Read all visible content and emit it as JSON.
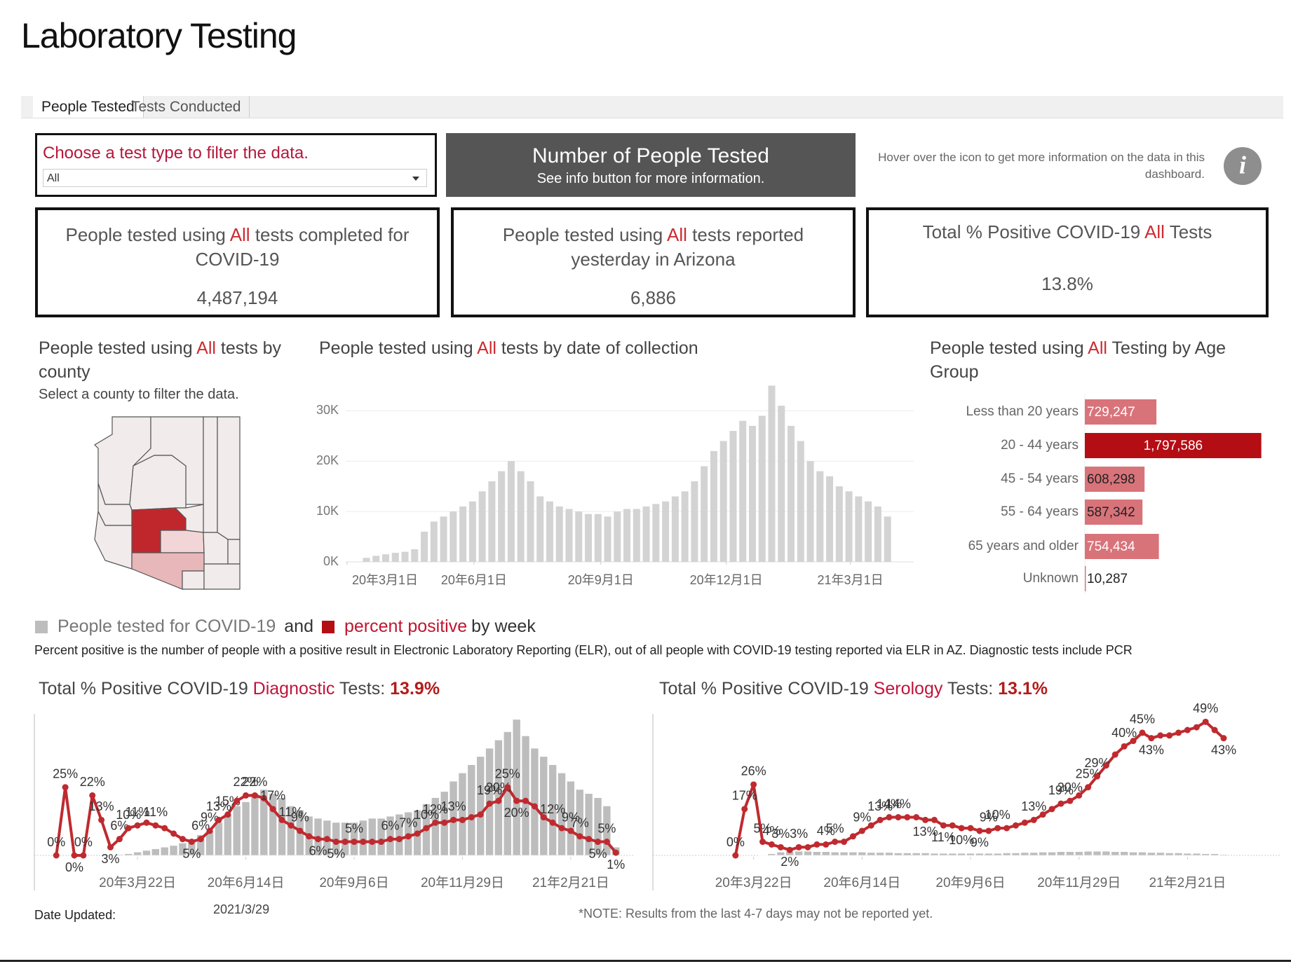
{
  "header": {
    "title": "Laboratory Testing"
  },
  "tabs": [
    "People Tested",
    "Tests Conducted"
  ],
  "filter": {
    "label": "Choose a test type to filter the data.",
    "selected": "All"
  },
  "banner": {
    "title": "Number of People Tested",
    "subtitle": "See info button for more information."
  },
  "info": {
    "text": "Hover over the icon to get more information on the data in this dashboard.",
    "icon": "i"
  },
  "kpis": [
    {
      "before": "People tested using ",
      "highlight": "All",
      "after": " tests completed for COVID-19",
      "value": "4,487,194"
    },
    {
      "before": "People tested using ",
      "highlight": "All",
      "after": " tests reported yesterday in Arizona",
      "value": "6,886"
    },
    {
      "before": "Total % Positive COVID-19 ",
      "highlight": "All",
      "after": " Tests",
      "value": "13.8%"
    }
  ],
  "map": {
    "before": "People tested using ",
    "highlight": "All",
    "after": " tests by county",
    "subtitle": "Select a county to filter the data."
  },
  "weekly_legend": {
    "and": "and",
    "by_week": "by week",
    "note": "Percent positive is the number of people with a positive result in Electronic Laboratory Reporting (ELR), out of all people with COVID-19 testing reported via ELR in AZ. Diagnostic tests include PCR"
  },
  "footer": {
    "label": "Date Updated:",
    "date": "2021/3/29",
    "note": "*NOTE: Results from the last 4-7 days may not be reported yet."
  },
  "chart_data": [
    {
      "type": "bar",
      "title_parts": [
        "People tested using ",
        "All",
        " tests by date of collection"
      ],
      "x": [
        "2020-03-15",
        "2020-03-22",
        "2020-03-29",
        "2020-04-05",
        "2020-04-12",
        "2020-04-19",
        "2020-04-26",
        "2020-05-03",
        "2020-05-10",
        "2020-05-17",
        "2020-05-24",
        "2020-05-31",
        "2020-06-07",
        "2020-06-14",
        "2020-06-21",
        "2020-06-28",
        "2020-07-05",
        "2020-07-12",
        "2020-07-19",
        "2020-07-26",
        "2020-08-02",
        "2020-08-09",
        "2020-08-16",
        "2020-08-23",
        "2020-08-30",
        "2020-09-06",
        "2020-09-13",
        "2020-09-20",
        "2020-09-27",
        "2020-10-04",
        "2020-10-11",
        "2020-10-18",
        "2020-10-25",
        "2020-11-01",
        "2020-11-08",
        "2020-11-15",
        "2020-11-22",
        "2020-11-29",
        "2020-12-06",
        "2020-12-13",
        "2020-12-20",
        "2020-12-27",
        "2021-01-03",
        "2021-01-10",
        "2021-01-17",
        "2021-01-24",
        "2021-01-31",
        "2021-02-07",
        "2021-02-14",
        "2021-02-21",
        "2021-02-28",
        "2021-03-07",
        "2021-03-14",
        "2021-03-21",
        "2021-03-28"
      ],
      "values": [
        800,
        1200,
        1500,
        1800,
        2000,
        2500,
        6000,
        8000,
        9000,
        10000,
        11000,
        12000,
        14000,
        16000,
        18000,
        20000,
        18000,
        16000,
        13000,
        12000,
        11000,
        10500,
        10000,
        9500,
        9500,
        9000,
        10000,
        10500,
        10500,
        11000,
        11500,
        12000,
        13000,
        14000,
        16000,
        19000,
        22000,
        24000,
        26000,
        28000,
        27000,
        29000,
        35000,
        31000,
        27000,
        24000,
        20000,
        18000,
        17000,
        15000,
        14000,
        13000,
        12000,
        11000,
        9000
      ],
      "color": "#d3d3d3",
      "xlim": [
        "2020-02-29",
        "2021-04-16"
      ],
      "xticks": [
        {
          "value": "2020-03-01",
          "label": "20年3月1日"
        },
        {
          "value": "2020-06-01",
          "label": "20年6月1日"
        },
        {
          "value": "2020-09-01",
          "label": "20年9月1日"
        },
        {
          "value": "2020-12-01",
          "label": "20年12月1日"
        },
        {
          "value": "2021-03-01",
          "label": "21年3月1日"
        }
      ],
      "ylim": [
        0,
        37000
      ],
      "yticks": [
        {
          "value": 0,
          "label": "0K"
        },
        {
          "value": 10000,
          "label": "10K"
        },
        {
          "value": 20000,
          "label": "20K"
        },
        {
          "value": 30000,
          "label": "30K"
        }
      ],
      "grid": true
    },
    {
      "type": "hbar",
      "title_parts": [
        "People tested using ",
        "All",
        " Testing by Age Group"
      ],
      "categories": [
        "Less than 20 years",
        "20 - 44 years",
        "45 - 54 years",
        "55 - 64 years",
        "65 years and older",
        "Unknown"
      ],
      "values": [
        729247,
        1797586,
        608298,
        587342,
        754434,
        10287
      ],
      "value_labels": [
        "729,247",
        "1,797,586",
        "608,298",
        "587,342",
        "754,434",
        "10,287"
      ],
      "colors": [
        "#d9737a",
        "#b50d14",
        "#d9737a",
        "#d9737a",
        "#d9737a",
        "#d9737a"
      ],
      "xlim": [
        0,
        1800000
      ]
    },
    {
      "type": "combo",
      "title_parts": [
        "Total % Positive COVID-19 ",
        "Diagnostic",
        " Tests: ",
        "13.9%"
      ],
      "x": [
        "2020-01-19",
        "2020-01-26",
        "2020-02-02",
        "2020-02-09",
        "2020-02-16",
        "2020-02-23",
        "2020-03-01",
        "2020-03-08",
        "2020-03-15",
        "2020-03-22",
        "2020-03-29",
        "2020-04-05",
        "2020-04-12",
        "2020-04-19",
        "2020-04-26",
        "2020-05-03",
        "2020-05-10",
        "2020-05-17",
        "2020-05-24",
        "2020-05-31",
        "2020-06-07",
        "2020-06-14",
        "2020-06-21",
        "2020-06-28",
        "2020-07-05",
        "2020-07-12",
        "2020-07-19",
        "2020-07-26",
        "2020-08-02",
        "2020-08-09",
        "2020-08-16",
        "2020-08-23",
        "2020-08-30",
        "2020-09-06",
        "2020-09-13",
        "2020-09-20",
        "2020-09-27",
        "2020-10-04",
        "2020-10-11",
        "2020-10-18",
        "2020-10-25",
        "2020-11-01",
        "2020-11-08",
        "2020-11-15",
        "2020-11-22",
        "2020-11-29",
        "2020-12-06",
        "2020-12-13",
        "2020-12-20",
        "2020-12-27",
        "2021-01-03",
        "2021-01-10",
        "2021-01-17",
        "2021-01-24",
        "2021-01-31",
        "2021-02-07",
        "2021-02-14",
        "2021-02-21",
        "2021-02-28",
        "2021-03-07",
        "2021-03-14",
        "2021-03-21",
        "2021-03-28"
      ],
      "series": [
        {
          "name": "People tested for COVID-19",
          "color": "#bdbdbd",
          "axis": "y2",
          "values": [
            0,
            0,
            0,
            0,
            0,
            0,
            0,
            2000,
            4000,
            8000,
            12000,
            16000,
            20000,
            24000,
            30000,
            40000,
            50000,
            60000,
            80000,
            100000,
            120000,
            130000,
            150000,
            160000,
            150000,
            140000,
            120000,
            110000,
            95000,
            90000,
            85000,
            80000,
            80000,
            80000,
            85000,
            90000,
            90000,
            95000,
            100000,
            105000,
            110000,
            125000,
            140000,
            155000,
            180000,
            200000,
            220000,
            240000,
            260000,
            280000,
            300000,
            330000,
            290000,
            260000,
            240000,
            220000,
            200000,
            180000,
            160000,
            150000,
            140000,
            120000,
            20000
          ]
        },
        {
          "name": "percent positive",
          "color": "#bf2a2f",
          "values": [
            0,
            25,
            0,
            0,
            22,
            13,
            3,
            6,
            10,
            11,
            12,
            11,
            10,
            8,
            6,
            5,
            6,
            9,
            13,
            15,
            20,
            22,
            22,
            21,
            17,
            13,
            11,
            9,
            7,
            6,
            6,
            5,
            5,
            5,
            5,
            5,
            5,
            6,
            6,
            7,
            8,
            10,
            12,
            12,
            13,
            13,
            14,
            15,
            19,
            20,
            25,
            20,
            20,
            18,
            14,
            12,
            10,
            9,
            7,
            6,
            5,
            5,
            1
          ],
          "value_labels": [
            "0%",
            "25%",
            "0%",
            "0%",
            "22%",
            "13%",
            "3%",
            "6%",
            "10%",
            "11%",
            null,
            "11%",
            null,
            null,
            null,
            "5%",
            "6%",
            "9%",
            "13%",
            "15%",
            null,
            "22%",
            "22%",
            null,
            "17%",
            null,
            "11%",
            "9%",
            null,
            "6%",
            null,
            "5%",
            null,
            "5%",
            null,
            null,
            null,
            "6%",
            null,
            "7%",
            null,
            "10%",
            "12%",
            null,
            "13%",
            null,
            null,
            null,
            "19%",
            "20%",
            "25%",
            "20%",
            null,
            null,
            null,
            "12%",
            null,
            "9%",
            "7%",
            null,
            "5%",
            "5%",
            "1%"
          ]
        }
      ],
      "xlim": [
        "2020-01-02",
        "2021-04-11"
      ],
      "xticks": [
        {
          "value": "2020-03-22",
          "label": "20年3月22日"
        },
        {
          "value": "2020-06-14",
          "label": "20年6月14日"
        },
        {
          "value": "2020-09-06",
          "label": "20年9月6日"
        },
        {
          "value": "2020-11-29",
          "label": "20年11月29日"
        },
        {
          "value": "2021-02-21",
          "label": "21年2月21日"
        }
      ],
      "ylim": [
        0,
        51.4
      ],
      "y2lim": [
        0,
        340000
      ]
    },
    {
      "type": "combo",
      "title_parts": [
        "Total % Positive COVID-19 ",
        "Serology",
        " Tests: ",
        "13.1%"
      ],
      "x": [
        "2020-03-08",
        "2020-03-15",
        "2020-03-22",
        "2020-03-29",
        "2020-04-05",
        "2020-04-12",
        "2020-04-19",
        "2020-04-26",
        "2020-05-03",
        "2020-05-10",
        "2020-05-17",
        "2020-05-24",
        "2020-05-31",
        "2020-06-07",
        "2020-06-14",
        "2020-06-21",
        "2020-06-28",
        "2020-07-05",
        "2020-07-12",
        "2020-07-19",
        "2020-07-26",
        "2020-08-02",
        "2020-08-09",
        "2020-08-16",
        "2020-08-23",
        "2020-08-30",
        "2020-09-06",
        "2020-09-13",
        "2020-09-20",
        "2020-09-27",
        "2020-10-04",
        "2020-10-11",
        "2020-10-18",
        "2020-10-25",
        "2020-11-01",
        "2020-11-08",
        "2020-11-15",
        "2020-11-22",
        "2020-11-29",
        "2020-12-06",
        "2020-12-13",
        "2020-12-20",
        "2020-12-27",
        "2021-01-03",
        "2021-01-10",
        "2021-01-17",
        "2021-01-24",
        "2021-01-31",
        "2021-02-07",
        "2021-02-14",
        "2021-02-21",
        "2021-02-28",
        "2021-03-07",
        "2021-03-14",
        "2021-03-21"
      ],
      "series": [
        {
          "color": "#bdbdbd",
          "axis": "y2",
          "values": [
            0,
            0,
            0,
            1000,
            4000,
            8000,
            10000,
            10000,
            10000,
            9000,
            9000,
            8000,
            8000,
            8000,
            8000,
            7000,
            7000,
            7000,
            6000,
            6000,
            6000,
            6000,
            5000,
            5000,
            5000,
            5000,
            5000,
            5000,
            5000,
            5000,
            6000,
            6000,
            7000,
            7000,
            8000,
            8000,
            9000,
            9000,
            9000,
            10000,
            10000,
            10000,
            9000,
            9000,
            8000,
            8000,
            7000,
            7000,
            6000,
            6000,
            5000,
            5000,
            4000,
            4000,
            2000
          ]
        },
        {
          "color": "#bf2a2f",
          "values": [
            0,
            17,
            26,
            5,
            4,
            3,
            2,
            3,
            3,
            4,
            4,
            5,
            5,
            7,
            9,
            11,
            13,
            14,
            14,
            14,
            14,
            13,
            13,
            11,
            11,
            10,
            10,
            9,
            9,
            10,
            10,
            11,
            12,
            13,
            15,
            17,
            19,
            20,
            22,
            25,
            29,
            33,
            37,
            40,
            42,
            45,
            43,
            44,
            44,
            45,
            46,
            47,
            49,
            46,
            43
          ],
          "value_labels": [
            "0%",
            "17%",
            "26%",
            "5%",
            "4%",
            "3%",
            "2%",
            "3%",
            null,
            null,
            "4%",
            "5%",
            null,
            null,
            "9%",
            null,
            "13%",
            "14%",
            "14%",
            null,
            null,
            "13%",
            null,
            "11%",
            null,
            "10%",
            null,
            "9%",
            "9%",
            "10%",
            null,
            null,
            null,
            "13%",
            null,
            null,
            "19%",
            "20%",
            null,
            "25%",
            "29%",
            null,
            null,
            "40%",
            null,
            "45%",
            "43%",
            null,
            null,
            null,
            null,
            null,
            "49%",
            null,
            "43%"
          ]
        }
      ],
      "xlim": [
        "2020-01-04",
        "2021-05-04"
      ],
      "xticks": [
        {
          "value": "2020-03-22",
          "label": "20年3月22日"
        },
        {
          "value": "2020-06-14",
          "label": "20年6月14日"
        },
        {
          "value": "2020-09-06",
          "label": "20年9月6日"
        },
        {
          "value": "2020-11-29",
          "label": "20年11月29日"
        },
        {
          "value": "2021-02-21",
          "label": "21年2月21日"
        }
      ],
      "ylim": [
        0,
        51.4
      ],
      "y2lim": [
        0,
        340000
      ]
    }
  ]
}
